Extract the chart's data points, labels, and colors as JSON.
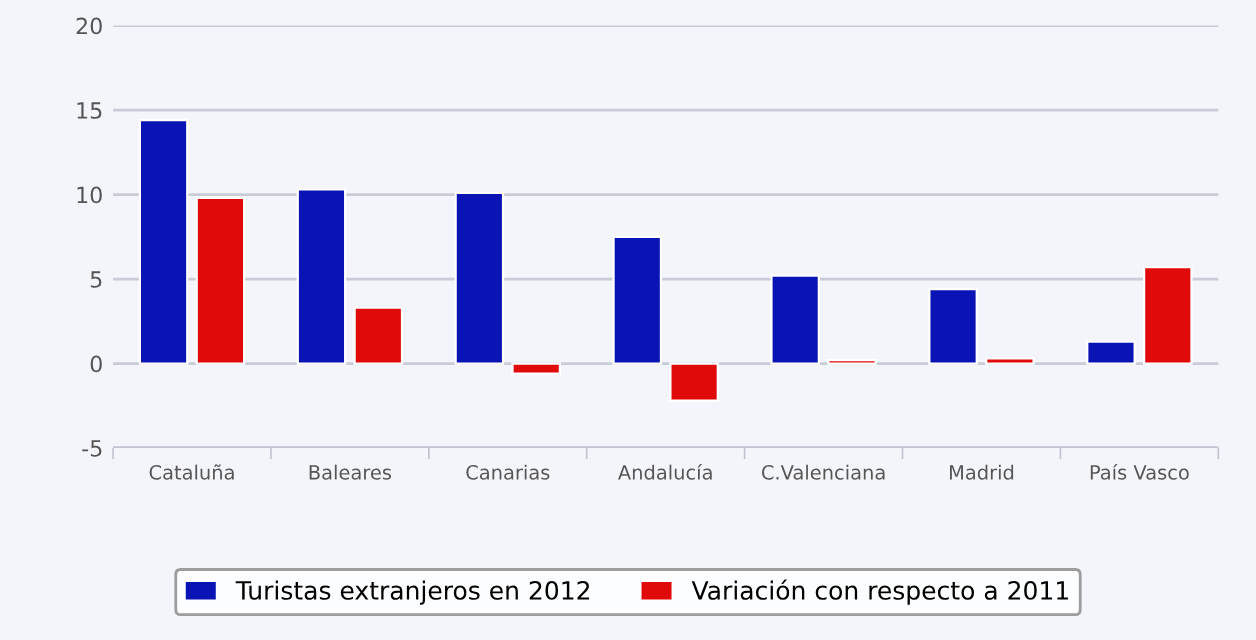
{
  "chart_data": {
    "type": "bar",
    "categories": [
      "Cataluña",
      "Baleares",
      "Canarias",
      "Andalucía",
      "C.Valenciana",
      "Madrid",
      "País Vasco"
    ],
    "series": [
      {
        "name": "Turistas extranjeros en 2012",
        "color": "#0a14b4",
        "values": [
          14.4,
          10.3,
          10.1,
          7.5,
          5.2,
          4.4,
          1.3
        ]
      },
      {
        "name": "Variación con respecto a 2011",
        "color": "#e00a0a",
        "values": [
          9.8,
          3.3,
          -0.6,
          -2.2,
          0.2,
          0.3,
          5.7
        ]
      }
    ],
    "ylim": [
      -5,
      20
    ],
    "yticks": [
      -5,
      0,
      5,
      10,
      15,
      20
    ],
    "grid": "y",
    "legend": "bottom"
  }
}
